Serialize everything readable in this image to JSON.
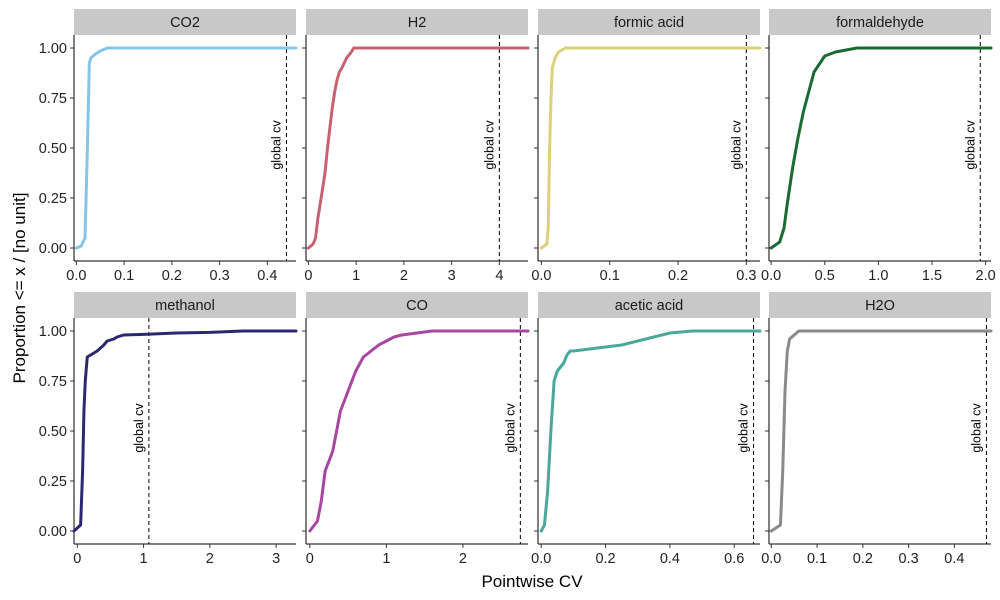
{
  "chart_data": {
    "type": "line",
    "subtype": "ecdf",
    "xlabel": "Pointwise CV",
    "ylabel": "Proportion <= x / [no unit]",
    "annotation": "global cv",
    "y_ticks": [
      "0.00",
      "0.25",
      "0.50",
      "0.75",
      "1.00"
    ],
    "ylim": [
      0,
      1
    ],
    "strip_color": "#c8c8c8",
    "panels": [
      {
        "name": "CO2",
        "color": "#86c5e6",
        "xlim": [
          -0.005,
          0.46
        ],
        "x_ticks": [
          0,
          0.1,
          0.2,
          0.3,
          0.4
        ],
        "x_tick_labels": [
          "0.0",
          "0.1",
          "0.2",
          "0.3",
          "0.4"
        ],
        "global_cv": 0.44,
        "x": [
          0,
          0.01,
          0.018,
          0.022,
          0.025,
          0.027,
          0.03,
          0.04,
          0.05,
          0.065,
          0.46
        ],
        "y": [
          0,
          0.01,
          0.05,
          0.4,
          0.7,
          0.92,
          0.95,
          0.97,
          0.985,
          1.0,
          1.0
        ]
      },
      {
        "name": "H2",
        "color": "#c86070",
        "xlim": [
          -0.05,
          4.6
        ],
        "x_ticks": [
          0,
          1,
          2,
          3,
          4
        ],
        "x_tick_labels": [
          "0",
          "1",
          "2",
          "3",
          "4"
        ],
        "global_cv": 4.0,
        "x": [
          0,
          0.1,
          0.15,
          0.2,
          0.3,
          0.35,
          0.4,
          0.45,
          0.5,
          0.55,
          0.6,
          0.65,
          0.7,
          0.8,
          0.9,
          0.95,
          4.6
        ],
        "y": [
          0,
          0.02,
          0.05,
          0.15,
          0.3,
          0.38,
          0.5,
          0.6,
          0.7,
          0.78,
          0.84,
          0.88,
          0.9,
          0.95,
          0.98,
          1.0,
          1.0
        ]
      },
      {
        "name": "formic acid",
        "color": "#ddd07a",
        "xlim": [
          -0.005,
          0.32
        ],
        "x_ticks": [
          0,
          0.1,
          0.2,
          0.3
        ],
        "x_tick_labels": [
          "0.0",
          "0.1",
          "0.2",
          "0.3"
        ],
        "global_cv": 0.3,
        "x": [
          0,
          0.008,
          0.01,
          0.012,
          0.014,
          0.016,
          0.02,
          0.025,
          0.03,
          0.035,
          0.32
        ],
        "y": [
          0,
          0.02,
          0.1,
          0.5,
          0.75,
          0.9,
          0.95,
          0.98,
          0.99,
          1.0,
          1.0
        ]
      },
      {
        "name": "formaldehyde",
        "color": "#1a6b32",
        "xlim": [
          -0.02,
          2.05
        ],
        "x_ticks": [
          0,
          0.5,
          1,
          1.5,
          2
        ],
        "x_tick_labels": [
          "0.0",
          "0.5",
          "1.0",
          "1.5",
          "2.0"
        ],
        "global_cv": 1.95,
        "x": [
          0,
          0.08,
          0.12,
          0.15,
          0.2,
          0.25,
          0.3,
          0.35,
          0.4,
          0.45,
          0.5,
          0.55,
          0.6,
          0.7,
          0.8,
          2.05
        ],
        "y": [
          0,
          0.03,
          0.1,
          0.22,
          0.4,
          0.55,
          0.68,
          0.78,
          0.88,
          0.92,
          0.96,
          0.97,
          0.98,
          0.99,
          1.0,
          1.0
        ]
      },
      {
        "name": "methanol",
        "color": "#2d2771",
        "xlim": [
          -0.05,
          3.3
        ],
        "x_ticks": [
          0,
          1,
          2,
          3
        ],
        "x_tick_labels": [
          "0",
          "1",
          "2",
          "3"
        ],
        "global_cv": 1.08,
        "x": [
          -0.05,
          0.05,
          0.08,
          0.1,
          0.12,
          0.15,
          0.2,
          0.3,
          0.4,
          0.45,
          0.55,
          0.6,
          0.7,
          1.0,
          1.5,
          2.0,
          2.5,
          3.3
        ],
        "y": [
          0,
          0.03,
          0.3,
          0.6,
          0.75,
          0.87,
          0.88,
          0.9,
          0.93,
          0.95,
          0.96,
          0.97,
          0.98,
          0.983,
          0.99,
          0.993,
          1.0,
          1.0
        ]
      },
      {
        "name": "CO",
        "color": "#a846a0",
        "xlim": [
          -0.05,
          2.85
        ],
        "x_ticks": [
          0,
          1,
          2
        ],
        "x_tick_labels": [
          "0",
          "1",
          "2"
        ],
        "global_cv": 2.75,
        "x": [
          0,
          0.1,
          0.15,
          0.2,
          0.3,
          0.35,
          0.4,
          0.45,
          0.5,
          0.55,
          0.6,
          0.7,
          0.8,
          0.9,
          1.0,
          1.1,
          1.2,
          1.4,
          1.6,
          2.85
        ],
        "y": [
          0,
          0.05,
          0.15,
          0.3,
          0.4,
          0.5,
          0.6,
          0.65,
          0.7,
          0.75,
          0.8,
          0.87,
          0.9,
          0.93,
          0.95,
          0.97,
          0.98,
          0.99,
          1.0,
          1.0
        ]
      },
      {
        "name": "acetic acid",
        "color": "#4aa89a",
        "xlim": [
          -0.01,
          0.68
        ],
        "x_ticks": [
          0,
          0.2,
          0.4,
          0.6
        ],
        "x_tick_labels": [
          "0.0",
          "0.2",
          "0.4",
          "0.6"
        ],
        "global_cv": 0.66,
        "x": [
          0,
          0.01,
          0.02,
          0.03,
          0.04,
          0.05,
          0.06,
          0.07,
          0.08,
          0.09,
          0.1,
          0.2,
          0.25,
          0.3,
          0.35,
          0.4,
          0.47,
          0.68
        ],
        "y": [
          0,
          0.03,
          0.2,
          0.5,
          0.75,
          0.8,
          0.82,
          0.84,
          0.88,
          0.9,
          0.9,
          0.92,
          0.93,
          0.95,
          0.97,
          0.99,
          1.0,
          1.0
        ]
      },
      {
        "name": "H2O",
        "color": "#8a8a8a",
        "xlim": [
          -0.005,
          0.48
        ],
        "x_ticks": [
          0,
          0.1,
          0.2,
          0.3,
          0.4
        ],
        "x_tick_labels": [
          "0.0",
          "0.1",
          "0.2",
          "0.3",
          "0.4"
        ],
        "global_cv": 0.47,
        "x": [
          0,
          0.02,
          0.025,
          0.03,
          0.035,
          0.04,
          0.05,
          0.06,
          0.48
        ],
        "y": [
          0,
          0.03,
          0.3,
          0.7,
          0.9,
          0.96,
          0.98,
          1.0,
          1.0
        ]
      }
    ]
  }
}
